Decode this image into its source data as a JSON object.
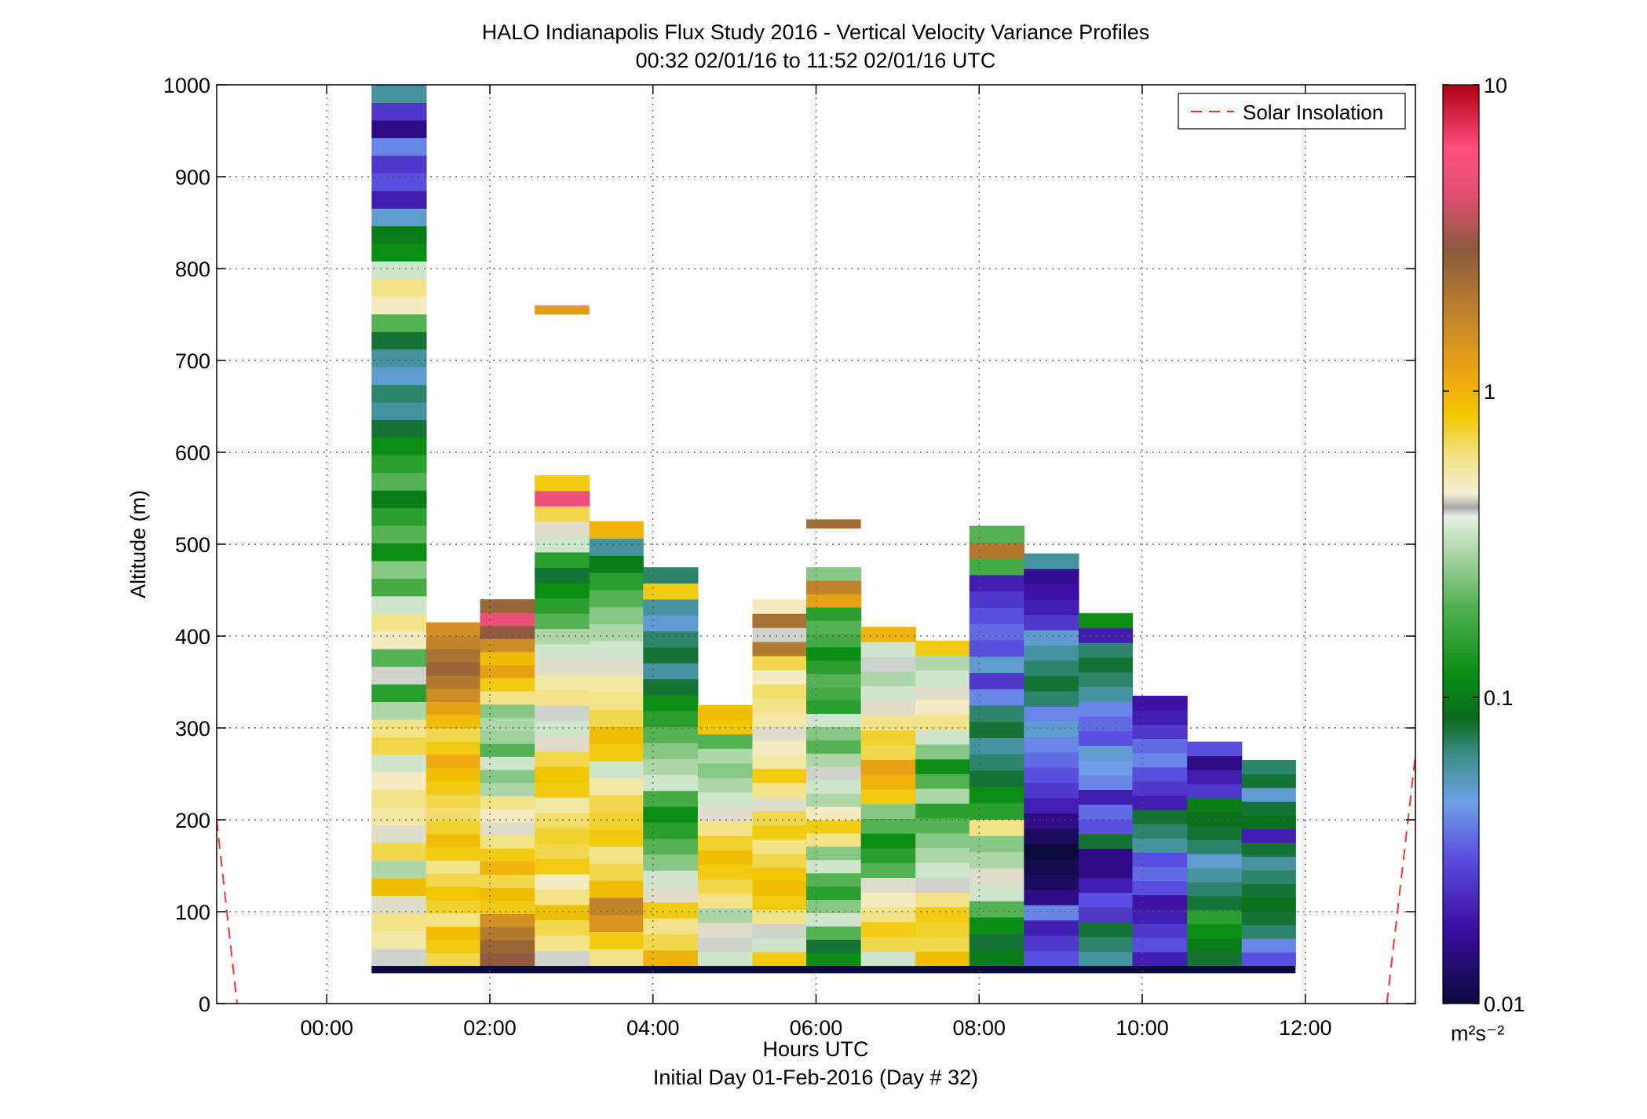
{
  "chart_data": {
    "type": "heatmap",
    "title": "HALO Indianapolis Flux Study 2016 - Vertical Velocity Variance Profiles",
    "subtitle": "00:32 02/01/16 to 11:52 02/01/16  UTC",
    "xlabel": "Hours UTC",
    "xlabel2": "Initial Day 01-Feb-2016 (Day # 32)",
    "ylabel": "Altitude (m)",
    "colorbar_units": "m²s⁻²",
    "x_tick_labels": [
      "00:00",
      "02:00",
      "04:00",
      "06:00",
      "08:00",
      "10:00",
      "12:00"
    ],
    "x_ticks_hours": [
      0,
      2,
      4,
      6,
      8,
      10,
      12
    ],
    "xlim_hours": [
      -1.35,
      13.35
    ],
    "y_tick_labels": [
      "0",
      "100",
      "200",
      "300",
      "400",
      "500",
      "600",
      "700",
      "800",
      "900",
      "1000"
    ],
    "y_ticks": [
      0,
      100,
      200,
      300,
      400,
      500,
      600,
      700,
      800,
      900,
      1000
    ],
    "ylim": [
      0,
      1000
    ],
    "colorbar_tick_labels": [
      "10",
      "1",
      "0.1",
      "0.01"
    ],
    "colorbar_range": [
      0.01,
      10
    ],
    "colorbar_scale": "log",
    "grid": true,
    "legend_position": "top-right",
    "legend": [
      {
        "name": "Solar Insolation",
        "color": "#ff3030",
        "style": "dashed"
      }
    ],
    "solar_insolation_visible_segments": [
      {
        "x_hours": [
          -1.35,
          -1.1
        ],
        "altitude": [
          200,
          0
        ]
      },
      {
        "x_hours": [
          13.0,
          13.35
        ],
        "altitude": [
          0,
          270
        ]
      }
    ],
    "profiles": [
      {
        "start_hour": 0.55,
        "end_hour": 1.22,
        "top_m": 1000,
        "variance_m2s2": [
          0.4,
          0.55,
          0.6,
          0.45,
          0.9,
          0.3,
          0.7,
          0.45,
          0.55,
          0.6,
          0.5,
          0.35,
          0.7,
          0.6,
          0.3,
          0.15,
          0.4,
          0.2,
          0.5,
          0.6,
          0.35,
          0.18,
          0.25,
          0.12,
          0.2,
          0.15,
          0.1,
          0.2,
          0.15,
          0.12,
          0.08,
          0.06,
          0.07,
          0.05,
          0.06,
          0.08,
          0.2,
          0.5,
          0.6,
          0.35,
          0.12,
          0.1,
          0.05,
          0.02,
          0.03,
          0.025,
          0.04,
          0.015,
          0.025,
          0.06
        ]
      },
      {
        "start_hour": 1.22,
        "end_hour": 1.88,
        "top_m": 415,
        "variance_m2s2": [
          0.7,
          0.8,
          0.9,
          0.6,
          0.75,
          0.85,
          0.7,
          0.6,
          0.8,
          0.9,
          0.75,
          0.65,
          0.7,
          0.8,
          0.9,
          1.1,
          0.8,
          0.7,
          0.9,
          1.2,
          1.6,
          2.0,
          2.5,
          2.2,
          1.8,
          1.5
        ]
      },
      {
        "start_hour": 1.88,
        "end_hour": 2.55,
        "top_m": 440,
        "variance_m2s2": [
          3.0,
          2.5,
          2.0,
          1.5,
          0.8,
          0.9,
          0.7,
          1.0,
          0.8,
          0.6,
          0.45,
          0.5,
          0.6,
          0.3,
          0.25,
          0.35,
          0.2,
          0.28,
          0.3,
          0.25,
          0.6,
          0.8,
          1.2,
          0.9,
          1.6,
          3.0,
          5.0,
          2.5
        ]
      },
      {
        "start_hour": 2.55,
        "end_hour": 3.22,
        "top_m": 575,
        "variance_m2s2": [
          0.4,
          0.6,
          0.7,
          0.9,
          0.6,
          0.5,
          0.8,
          0.7,
          0.75,
          0.65,
          0.55,
          0.8,
          0.85,
          0.7,
          0.45,
          0.35,
          0.4,
          0.6,
          0.55,
          0.45,
          0.35,
          0.3,
          0.2,
          0.15,
          0.12,
          0.08,
          0.15,
          0.35,
          0.45,
          0.7,
          5.0,
          0.8
        ]
      },
      {
        "start_hour": 3.22,
        "end_hour": 3.88,
        "top_m": 525,
        "variance_m2s2": [
          0.6,
          0.8,
          1.4,
          1.8,
          0.9,
          0.7,
          0.6,
          0.8,
          0.75,
          0.7,
          0.55,
          0.35,
          0.8,
          0.9,
          0.7,
          0.6,
          0.55,
          0.45,
          0.35,
          0.3,
          0.25,
          0.2,
          0.15,
          0.1,
          0.06,
          1.0
        ]
      },
      {
        "start_hour": 3.88,
        "end_hour": 4.55,
        "top_m": 475,
        "variance_m2s2": [
          1.0,
          0.7,
          0.6,
          0.8,
          0.45,
          0.35,
          0.25,
          0.2,
          0.15,
          0.12,
          0.18,
          0.35,
          0.3,
          0.25,
          0.2,
          0.15,
          0.12,
          0.08,
          0.06,
          0.08,
          0.07,
          0.05,
          0.06,
          0.8,
          0.07
        ]
      },
      {
        "start_hour": 4.55,
        "end_hour": 5.22,
        "top_m": 325,
        "variance_m2s2": [
          0.35,
          0.4,
          0.45,
          0.3,
          0.6,
          0.7,
          0.8,
          0.9,
          0.75,
          0.6,
          0.45,
          0.35,
          0.3,
          0.25,
          0.3,
          0.2,
          0.85,
          0.9
        ]
      },
      {
        "start_hour": 5.22,
        "end_hour": 5.88,
        "top_m": 440,
        "variance_m2s2": [
          0.8,
          0.35,
          0.4,
          0.6,
          0.8,
          0.9,
          0.85,
          0.7,
          0.6,
          0.8,
          0.7,
          0.45,
          0.6,
          0.8,
          0.55,
          0.5,
          0.45,
          0.55,
          0.6,
          0.65,
          0.5,
          0.7,
          2.0,
          0.4,
          2.2,
          0.5
        ]
      },
      {
        "start_hour": 5.88,
        "end_hour": 6.55,
        "top_m": 475,
        "variance_m2s2": [
          0.12,
          0.08,
          0.2,
          0.35,
          0.25,
          0.15,
          0.2,
          0.35,
          0.25,
          0.6,
          0.8,
          0.5,
          0.3,
          0.35,
          0.4,
          0.3,
          0.2,
          0.25,
          0.35,
          0.15,
          0.18,
          0.2,
          0.15,
          0.12,
          0.18,
          0.2,
          0.15,
          1.2,
          1.8,
          0.25
        ]
      },
      {
        "start_hour": 6.55,
        "end_hour": 7.22,
        "top_m": 410,
        "variance_m2s2": [
          0.35,
          0.7,
          0.8,
          0.6,
          0.5,
          0.45,
          0.2,
          0.15,
          0.12,
          0.2,
          0.25,
          0.8,
          1.0,
          1.2,
          0.7,
          0.75,
          0.6,
          0.45,
          0.35,
          0.3,
          0.4,
          0.35,
          1.0
        ]
      },
      {
        "start_hour": 7.22,
        "end_hour": 7.88,
        "top_m": 395,
        "variance_m2s2": [
          0.9,
          0.7,
          0.75,
          0.8,
          0.6,
          0.4,
          0.35,
          0.3,
          0.25,
          0.2,
          0.15,
          0.3,
          0.2,
          0.12,
          0.25,
          0.35,
          0.6,
          0.5,
          0.45,
          0.35,
          0.3,
          0.8
        ]
      },
      {
        "start_hour": 7.88,
        "end_hour": 8.55,
        "top_m": 520,
        "variance_m2s2": [
          0.1,
          0.08,
          0.12,
          0.2,
          0.35,
          0.45,
          0.3,
          0.25,
          0.6,
          0.15,
          0.12,
          0.08,
          0.07,
          0.06,
          0.08,
          0.07,
          0.04,
          0.025,
          0.05,
          0.03,
          0.035,
          0.03,
          0.025,
          0.02,
          0.18,
          2.0,
          0.2
        ]
      },
      {
        "start_hour": 8.55,
        "end_hour": 9.22,
        "top_m": 490,
        "variance_m2s2": [
          0.03,
          0.025,
          0.02,
          0.04,
          0.015,
          0.012,
          0.011,
          0.01,
          0.012,
          0.015,
          0.02,
          0.025,
          0.03,
          0.035,
          0.04,
          0.05,
          0.04,
          0.07,
          0.08,
          0.07,
          0.06,
          0.05,
          0.025,
          0.02,
          0.018,
          0.016,
          0.06
        ]
      },
      {
        "start_hour": 9.22,
        "end_hour": 9.88,
        "top_m": 425,
        "variance_m2s2": [
          0.06,
          0.07,
          0.08,
          0.025,
          0.03,
          0.02,
          0.015,
          0.015,
          0.08,
          0.03,
          0.035,
          0.02,
          0.04,
          0.045,
          0.05,
          0.03,
          0.035,
          0.04,
          0.06,
          0.07,
          0.08,
          0.07,
          0.02,
          0.12
        ]
      },
      {
        "start_hour": 9.88,
        "end_hour": 10.55,
        "top_m": 335,
        "variance_m2s2": [
          0.02,
          0.03,
          0.025,
          0.02,
          0.018,
          0.03,
          0.035,
          0.03,
          0.06,
          0.07,
          0.08,
          0.02,
          0.025,
          0.03,
          0.04,
          0.035,
          0.025,
          0.02,
          0.018
        ]
      },
      {
        "start_hour": 10.55,
        "end_hour": 11.22,
        "top_m": 285,
        "variance_m2s2": [
          0.08,
          0.1,
          0.12,
          0.15,
          0.08,
          0.07,
          0.06,
          0.05,
          0.07,
          0.08,
          0.09,
          0.1,
          0.025,
          0.02,
          0.015,
          0.03
        ]
      },
      {
        "start_hour": 11.22,
        "end_hour": 11.88,
        "top_m": 265,
        "variance_m2s2": [
          0.03,
          0.04,
          0.07,
          0.08,
          0.09,
          0.08,
          0.07,
          0.06,
          0.08,
          0.02,
          0.09,
          0.08,
          0.05,
          0.08,
          0.07
        ]
      }
    ],
    "overlay_segments": [
      {
        "hour_start": 2.55,
        "hour_end": 3.22,
        "altitude": 755,
        "variance_m2s2": 1.3
      },
      {
        "hour_start": 5.88,
        "hour_end": 6.55,
        "altitude": 522,
        "variance_m2s2": 2.3
      }
    ],
    "surface_band": {
      "hour_start": 0.55,
      "hour_end": 11.88,
      "altitude_range": [
        33,
        41
      ],
      "variance_m2s2": 0.01
    }
  }
}
